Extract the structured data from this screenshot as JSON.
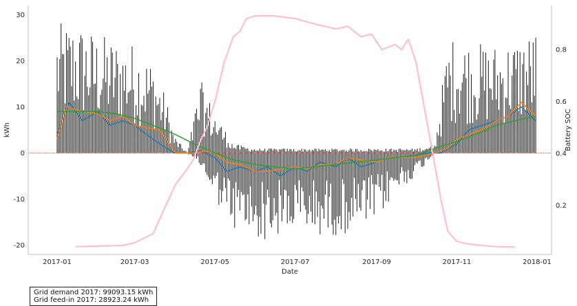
{
  "chart_data": {
    "type": "line",
    "xlabel": "Date",
    "ylabel": "kWh",
    "y2label": "Battery SOC",
    "xlim": [
      "2016-12-10",
      "2018-01-12"
    ],
    "ylim": [
      -22,
      32
    ],
    "y2lim": [
      0.01,
      0.97
    ],
    "x_ticks": [
      "2017-01",
      "2017-03",
      "2017-05",
      "2017-07",
      "2017-09",
      "2017-11",
      "2018-01"
    ],
    "y_ticks": [
      -20,
      -10,
      0,
      10,
      20,
      30
    ],
    "y2_ticks": [
      0.2,
      0.4,
      0.6,
      0.8
    ],
    "grid": false,
    "zero_line_color": "#d9534f",
    "series": [
      {
        "role": "daily-net-grid-energy",
        "color": "#000000",
        "envelope": {
          "x": [
            "2017-01-01",
            "2017-01-15",
            "2017-02-01",
            "2017-02-15",
            "2017-03-01",
            "2017-03-15",
            "2017-03-25",
            "2017-03-31",
            "2017-04-10",
            "2017-04-20",
            "2017-05-01",
            "2017-05-15",
            "2017-06-01",
            "2017-06-15",
            "2017-07-01",
            "2017-07-15",
            "2017-08-01",
            "2017-08-15",
            "2017-09-01",
            "2017-09-15",
            "2017-10-01",
            "2017-10-15",
            "2017-10-25",
            "2017-11-01",
            "2017-11-15",
            "2017-12-01",
            "2017-12-15",
            "2017-12-31"
          ],
          "max": [
            28,
            29,
            26,
            25,
            24,
            20,
            12,
            4,
            0,
            16,
            9,
            2,
            1,
            1,
            1,
            1,
            1,
            1,
            1,
            1,
            1,
            2,
            24,
            26,
            24,
            24,
            25,
            27
          ],
          "min": [
            0,
            0,
            0,
            0,
            0,
            0,
            0,
            0,
            0,
            -3,
            -10,
            -17,
            -19,
            -19,
            -17,
            -18,
            -18,
            -17,
            -15,
            -9,
            -5,
            0,
            0,
            0,
            0,
            0,
            0,
            0
          ]
        }
      },
      {
        "role": "weekly-mean",
        "color": "#1f77b4",
        "x": [
          "2017-01-01",
          "2017-01-10",
          "2017-01-20",
          "2017-02-01",
          "2017-02-10",
          "2017-02-20",
          "2017-03-01",
          "2017-03-10",
          "2017-03-20",
          "2017-03-31",
          "2017-04-10",
          "2017-04-20",
          "2017-05-01",
          "2017-05-10",
          "2017-05-20",
          "2017-06-01",
          "2017-06-10",
          "2017-06-20",
          "2017-07-01",
          "2017-07-10",
          "2017-07-20",
          "2017-08-01",
          "2017-08-10",
          "2017-08-20",
          "2017-09-01",
          "2017-09-10",
          "2017-09-20",
          "2017-10-01",
          "2017-10-10",
          "2017-10-20",
          "2017-11-01",
          "2017-11-10",
          "2017-11-20",
          "2017-12-01",
          "2017-12-10",
          "2017-12-20",
          "2017-12-31"
        ],
        "y": [
          4,
          11,
          7,
          9,
          6,
          7,
          6,
          4,
          2,
          0,
          0,
          0.5,
          -1,
          -4,
          -3,
          -4,
          -3,
          -5,
          -3,
          -4,
          -2,
          -3,
          -1,
          -3,
          -2,
          -1,
          -1,
          -0.5,
          0,
          0,
          2,
          5,
          6,
          7,
          8,
          10,
          7
        ]
      },
      {
        "role": "monthly-mean",
        "color": "#ff7f0e",
        "x": [
          "2017-01-01",
          "2017-01-08",
          "2017-01-20",
          "2017-02-01",
          "2017-02-10",
          "2017-02-20",
          "2017-03-01",
          "2017-03-10",
          "2017-03-20",
          "2017-04-01",
          "2017-04-15",
          "2017-04-25",
          "2017-05-01",
          "2017-05-10",
          "2017-05-20",
          "2017-06-01",
          "2017-06-10",
          "2017-06-20",
          "2017-07-01",
          "2017-07-10",
          "2017-07-20",
          "2017-08-01",
          "2017-08-10",
          "2017-08-20",
          "2017-09-01",
          "2017-09-10",
          "2017-09-20",
          "2017-10-01",
          "2017-10-15",
          "2017-10-25",
          "2017-11-01",
          "2017-11-10",
          "2017-11-20",
          "2017-12-01",
          "2017-12-10",
          "2017-12-20",
          "2017-12-31"
        ],
        "y": [
          3,
          10,
          9,
          8.5,
          7,
          8,
          6,
          5.5,
          5,
          0,
          0,
          0.5,
          0,
          -2,
          -2.5,
          -4,
          -4,
          -3.5,
          -3,
          -3.5,
          -2.5,
          -2.5,
          -1,
          -1.5,
          -2,
          -1,
          -1,
          -1,
          0,
          1,
          3,
          4,
          5,
          7,
          8,
          11,
          8
        ]
      },
      {
        "role": "trend",
        "color": "#2ca02c",
        "x": [
          "2017-01-01",
          "2017-01-15",
          "2017-02-01",
          "2017-02-15",
          "2017-03-01",
          "2017-03-15",
          "2017-04-01",
          "2017-04-15",
          "2017-05-01",
          "2017-05-15",
          "2017-06-01",
          "2017-06-15",
          "2017-07-01",
          "2017-07-15",
          "2017-08-01",
          "2017-08-15",
          "2017-09-01",
          "2017-09-15",
          "2017-10-01",
          "2017-10-15",
          "2017-11-01",
          "2017-11-15",
          "2017-12-01",
          "2017-12-15",
          "2017-12-31"
        ],
        "y": [
          9,
          9,
          9,
          8.5,
          7.5,
          6,
          4,
          2,
          0,
          -1.5,
          -2.5,
          -3,
          -3.5,
          -3,
          -2.5,
          -2,
          -1.5,
          -1,
          -0.5,
          1,
          2.5,
          4,
          6,
          7,
          8
        ]
      },
      {
        "role": "battery-soc",
        "axis": "y2",
        "color": "#ffc0cb",
        "x": [
          "2017-01-15",
          "2017-02-01",
          "2017-02-20",
          "2017-03-01",
          "2017-03-15",
          "2017-03-22",
          "2017-04-01",
          "2017-04-10",
          "2017-04-15",
          "2017-04-20",
          "2017-04-25",
          "2017-05-01",
          "2017-05-08",
          "2017-05-15",
          "2017-05-20",
          "2017-05-25",
          "2017-06-01",
          "2017-06-15",
          "2017-07-01",
          "2017-07-15",
          "2017-08-01",
          "2017-08-10",
          "2017-08-20",
          "2017-08-28",
          "2017-09-05",
          "2017-09-15",
          "2017-09-20",
          "2017-09-25",
          "2017-10-01",
          "2017-10-10",
          "2017-10-20",
          "2017-10-25",
          "2017-11-01",
          "2017-11-10",
          "2017-11-20",
          "2017-12-01",
          "2017-12-15"
        ],
        "y": [
          0.04,
          0.042,
          0.045,
          0.055,
          0.09,
          0.17,
          0.28,
          0.34,
          0.38,
          0.45,
          0.5,
          0.6,
          0.75,
          0.85,
          0.87,
          0.92,
          0.93,
          0.93,
          0.92,
          0.9,
          0.88,
          0.89,
          0.85,
          0.86,
          0.8,
          0.82,
          0.8,
          0.84,
          0.75,
          0.5,
          0.22,
          0.1,
          0.06,
          0.05,
          0.045,
          0.04,
          0.038
        ]
      }
    ]
  },
  "summary": {
    "line1": "Grid demand 2017: 99093.15 kWh",
    "line2": "Grid feed-in 2017: 28923.24 kWh"
  }
}
